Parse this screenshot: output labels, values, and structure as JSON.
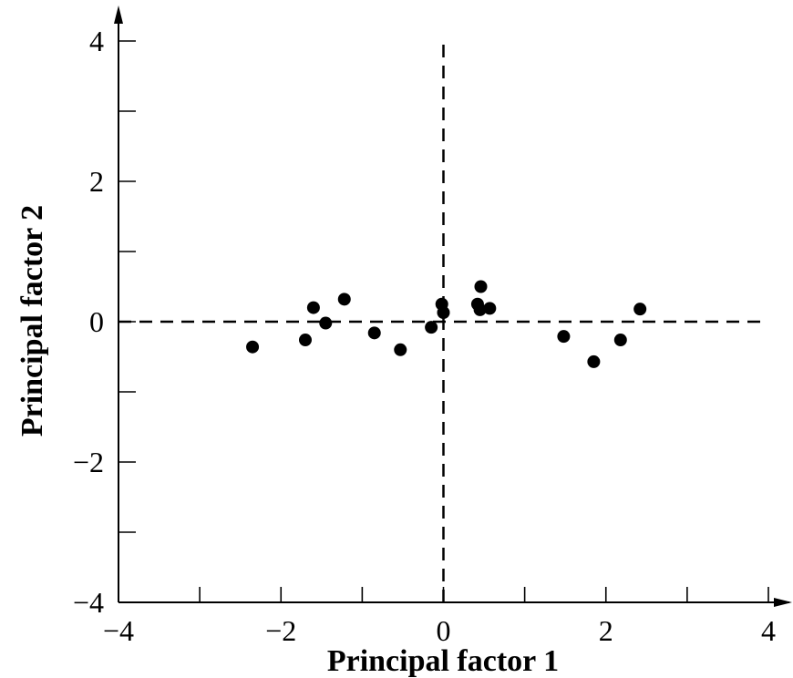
{
  "chart_data": {
    "type": "scatter",
    "title": "",
    "xlabel": "Principal factor 1",
    "ylabel": "Principal factor 2",
    "xlim": [
      -4,
      4
    ],
    "ylim": [
      -4,
      4
    ],
    "x_ticks": [
      -4,
      -3,
      -2,
      -1,
      0,
      1,
      2,
      3,
      4
    ],
    "y_ticks": [
      -4,
      -3,
      -2,
      -1,
      0,
      1,
      2,
      3,
      4
    ],
    "x_tick_labels": [
      {
        "value": -4,
        "label": "−4"
      },
      {
        "value": -2,
        "label": "−2"
      },
      {
        "value": 0,
        "label": "0"
      },
      {
        "value": 2,
        "label": "2"
      },
      {
        "value": 4,
        "label": "4"
      }
    ],
    "y_tick_labels": [
      {
        "value": -4,
        "label": "−4"
      },
      {
        "value": -2,
        "label": "−2"
      },
      {
        "value": 0,
        "label": "0"
      },
      {
        "value": 2,
        "label": "2"
      },
      {
        "value": 4,
        "label": "4"
      }
    ],
    "reference_lines": {
      "x": 0,
      "y": 0,
      "style": "dashed"
    },
    "grid": false,
    "legend": "none",
    "marker_color": "#000000",
    "points": [
      {
        "x": -2.35,
        "y": -0.36
      },
      {
        "x": -1.7,
        "y": -0.26
      },
      {
        "x": -1.6,
        "y": 0.2
      },
      {
        "x": -1.45,
        "y": -0.02
      },
      {
        "x": -1.22,
        "y": 0.32
      },
      {
        "x": -0.85,
        "y": -0.16
      },
      {
        "x": -0.53,
        "y": -0.4
      },
      {
        "x": -0.15,
        "y": -0.08
      },
      {
        "x": -0.02,
        "y": 0.25
      },
      {
        "x": 0.0,
        "y": 0.13
      },
      {
        "x": 0.42,
        "y": 0.25
      },
      {
        "x": 0.45,
        "y": 0.17
      },
      {
        "x": 0.46,
        "y": 0.5
      },
      {
        "x": 0.57,
        "y": 0.19
      },
      {
        "x": 1.48,
        "y": -0.21
      },
      {
        "x": 1.85,
        "y": -0.57
      },
      {
        "x": 2.18,
        "y": -0.26
      },
      {
        "x": 2.42,
        "y": 0.18
      }
    ]
  }
}
